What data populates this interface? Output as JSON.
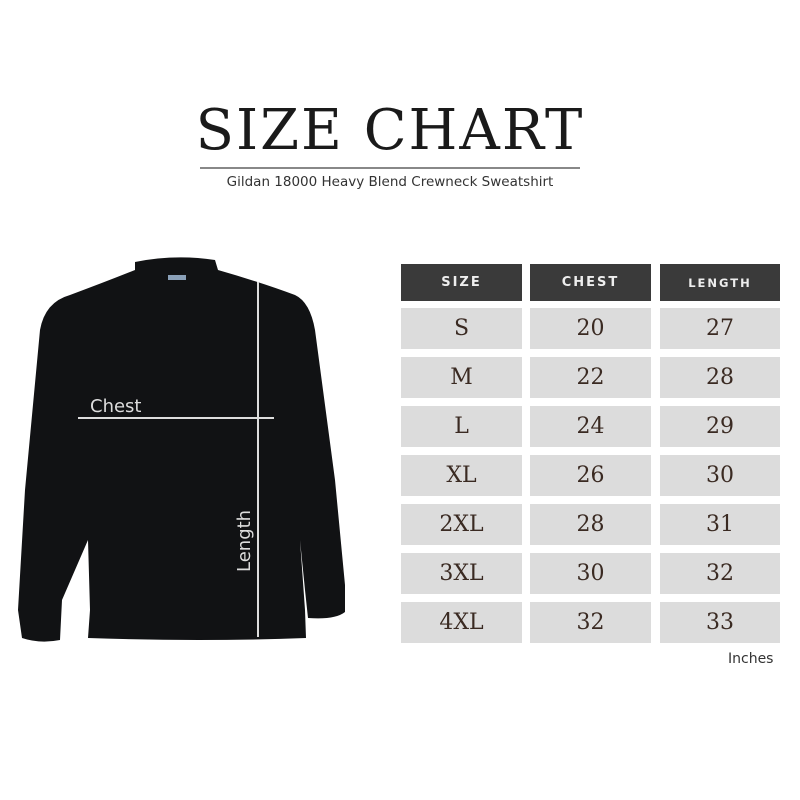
{
  "title": "SIZE CHART",
  "subtitle": "Gildan 18000 Heavy Blend Crewneck Sweatshirt",
  "diagram": {
    "chest_label": "Chest",
    "length_label": "Length",
    "garment_color": "#111214"
  },
  "table": {
    "headers": [
      "SIZE",
      "CHEST",
      "LENGTH"
    ],
    "rows": [
      [
        "S",
        "20",
        "27"
      ],
      [
        "M",
        "22",
        "28"
      ],
      [
        "L",
        "24",
        "29"
      ],
      [
        "XL",
        "26",
        "30"
      ],
      [
        "2XL",
        "28",
        "31"
      ],
      [
        "3XL",
        "30",
        "32"
      ],
      [
        "4XL",
        "32",
        "33"
      ]
    ],
    "units": "Inches",
    "header_color": "#3a3a3a",
    "cell_color": "#dcdcdc"
  }
}
